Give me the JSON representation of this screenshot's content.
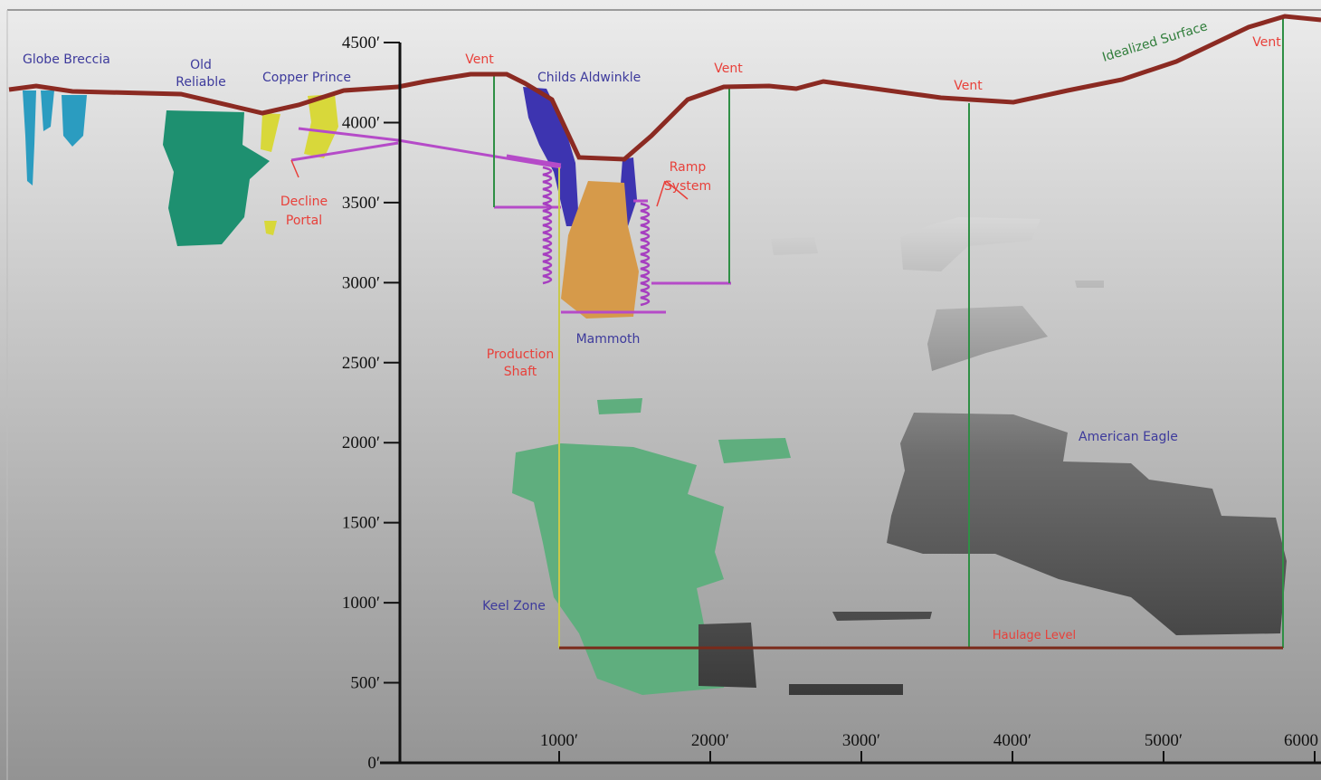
{
  "axis": {
    "y_ticks": [
      "4500′",
      "4000′",
      "3500′",
      "3000′",
      "2500′",
      "2000′",
      "1500′",
      "1000′",
      "500′",
      "0′"
    ],
    "x_ticks": [
      "1000′",
      "2000′",
      "3000′",
      "4000′",
      "5000′",
      "6000"
    ]
  },
  "labels": {
    "globe_breccia": "Globe Breccia",
    "old_reliable": [
      "Old",
      "Reliable"
    ],
    "copper_prince": "Copper Prince",
    "vents": [
      "Vent",
      "Vent",
      "Vent",
      "Vent"
    ],
    "childs_aldwinkle": "Childs Aldwinkle",
    "idealized_surface": "Idealized Surface",
    "ramp_system": [
      "Ramp",
      "System"
    ],
    "decline_portal": [
      "Decline",
      "Portal"
    ],
    "mammoth": "Mammoth",
    "production_shaft": [
      "Production",
      "Shaft"
    ],
    "keel_zone": "Keel Zone",
    "american_eagle": "American Eagle",
    "haulage_level": "Haulage Level"
  }
}
